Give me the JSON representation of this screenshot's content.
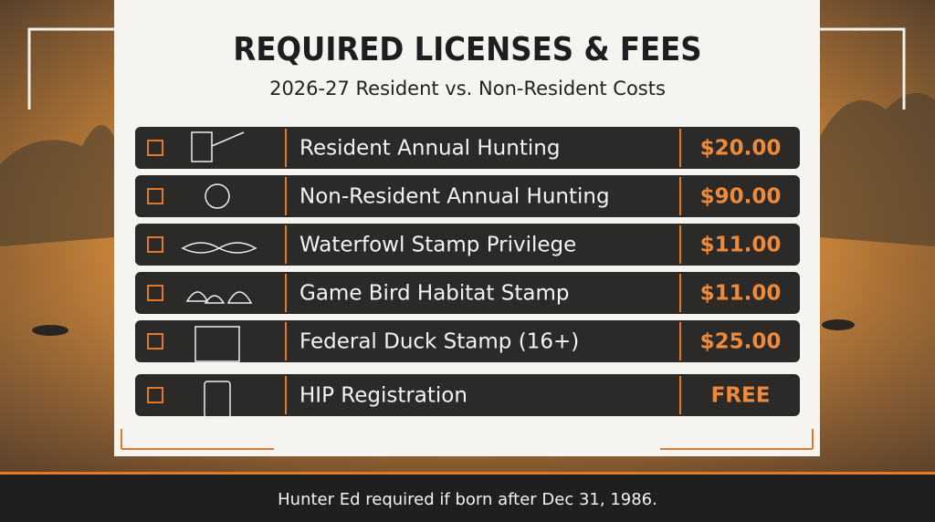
{
  "header": {
    "title": "REQUIRED LICENSES & FEES",
    "subtitle": "2026-27 Resident vs. Non-Resident Costs"
  },
  "rows": [
    {
      "label": "Resident Annual Hunting",
      "price": "$20.00"
    },
    {
      "label": "Non-Resident Annual Hunting",
      "price": "$90.00"
    },
    {
      "label": "Waterfowl Stamp Privilege",
      "price": "$11.00"
    },
    {
      "label": "Game Bird Habitat Stamp",
      "price": "$11.00"
    },
    {
      "label": "Federal Duck Stamp (16+)",
      "price": "$25.00"
    },
    {
      "label": "HIP Registration",
      "price": "FREE"
    }
  ],
  "footer": {
    "note": "Hunter Ed required if born after Dec 31, 1986."
  }
}
